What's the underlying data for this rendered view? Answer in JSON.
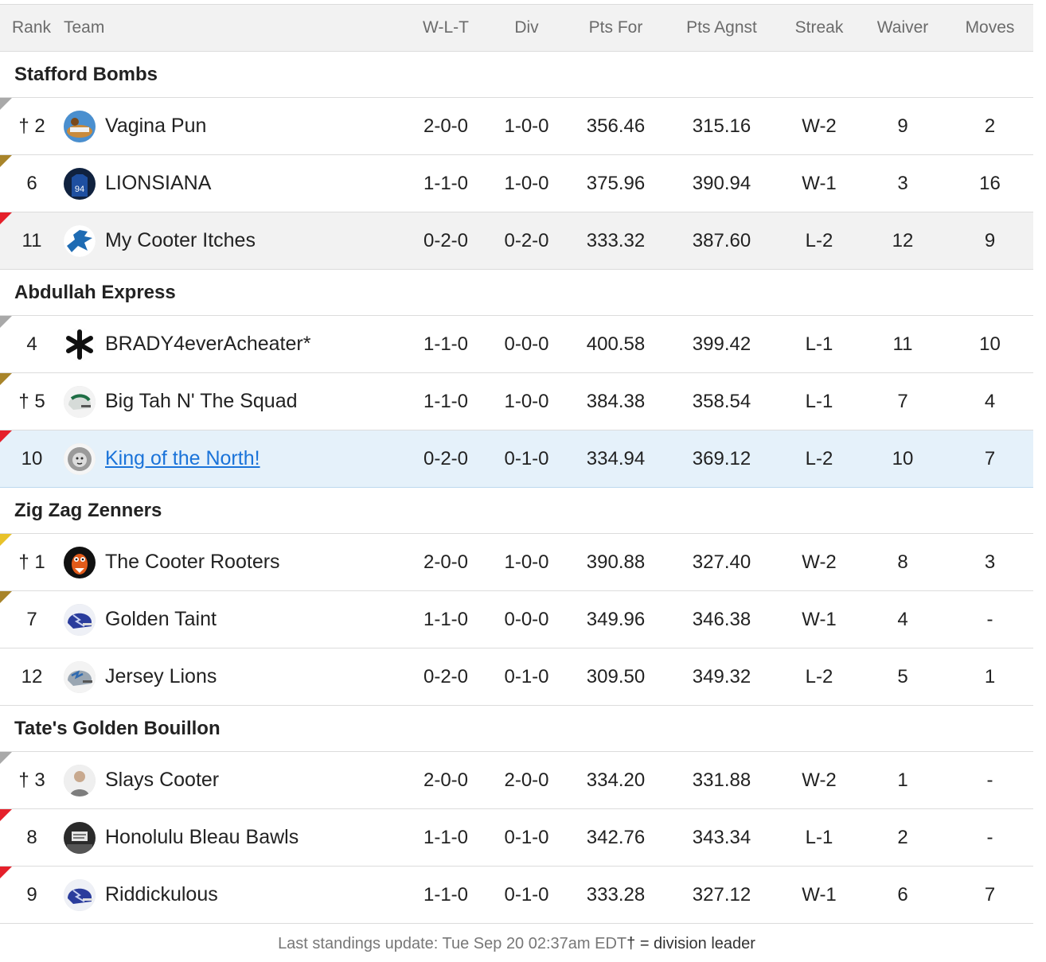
{
  "columns": {
    "rank": "Rank",
    "team": "Team",
    "wlt": "W-L-T",
    "div": "Div",
    "pts_for": "Pts For",
    "pts_agnst": "Pts Agnst",
    "streak": "Streak",
    "waiver": "Waiver",
    "moves": "Moves"
  },
  "divisions": [
    {
      "name": "Stafford Bombs",
      "teams": [
        {
          "rank": "† 2",
          "name": "Vagina Pun",
          "wlt": "2-0-0",
          "div": "1-0-0",
          "pts_for": "356.46",
          "pts_agnst": "315.16",
          "streak": "W-2",
          "waiver": "9",
          "moves": "2",
          "corner_color": "#a9a9a9",
          "logo": "cartoon-logo-icon"
        },
        {
          "rank": "6",
          "name": "LIONSIANA",
          "wlt": "1-1-0",
          "div": "1-0-0",
          "pts_for": "375.96",
          "pts_agnst": "390.94",
          "streak": "W-1",
          "waiver": "3",
          "moves": "16",
          "corner_color": "#a8842a",
          "logo": "jersey-94-icon"
        },
        {
          "rank": "11",
          "name": "My Cooter Itches",
          "wlt": "0-2-0",
          "div": "0-2-0",
          "pts_for": "333.32",
          "pts_agnst": "387.60",
          "streak": "L-2",
          "waiver": "12",
          "moves": "9",
          "corner_color": "#e5202a",
          "logo": "lion-icon"
        }
      ]
    },
    {
      "name": "Abdullah Express",
      "teams": [
        {
          "rank": "4",
          "name": "BRADY4everAcheater*",
          "wlt": "1-1-0",
          "div": "0-0-0",
          "pts_for": "400.58",
          "pts_agnst": "399.42",
          "streak": "L-1",
          "waiver": "11",
          "moves": "10",
          "corner_color": "#a9a9a9",
          "logo": "asterisk-icon"
        },
        {
          "rank": "† 5",
          "name": "Big Tah N' The Squad",
          "wlt": "1-1-0",
          "div": "1-0-0",
          "pts_for": "384.38",
          "pts_agnst": "358.54",
          "streak": "L-1",
          "waiver": "7",
          "moves": "4",
          "corner_color": "#a8842a",
          "logo": "green-helmet-icon"
        },
        {
          "rank": "10",
          "name": "King of the North!",
          "wlt": "0-2-0",
          "div": "0-1-0",
          "pts_for": "334.94",
          "pts_agnst": "369.12",
          "streak": "L-2",
          "waiver": "10",
          "moves": "7",
          "corner_color": "#e5202a",
          "logo": "lion-face-icon"
        }
      ]
    },
    {
      "name": "Zig Zag Zenners",
      "teams": [
        {
          "rank": "† 1",
          "name": "The Cooter Rooters",
          "wlt": "2-0-0",
          "div": "1-0-0",
          "pts_for": "390.88",
          "pts_agnst": "327.40",
          "streak": "W-2",
          "waiver": "8",
          "moves": "3",
          "corner_color": "#e8c22a",
          "logo": "mascot-icon"
        },
        {
          "rank": "7",
          "name": "Golden Taint",
          "wlt": "1-1-0",
          "div": "0-0-0",
          "pts_for": "349.96",
          "pts_agnst": "346.38",
          "streak": "W-1",
          "waiver": "4",
          "moves": "-",
          "corner_color": "#a8842a",
          "logo": "blue-helmet-icon"
        },
        {
          "rank": "12",
          "name": "Jersey Lions",
          "wlt": "0-2-0",
          "div": "0-1-0",
          "pts_for": "309.50",
          "pts_agnst": "349.32",
          "streak": "L-2",
          "waiver": "5",
          "moves": "1",
          "corner_color": "",
          "logo": "silver-helmet-icon"
        }
      ]
    },
    {
      "name": "Tate's Golden Bouillon",
      "teams": [
        {
          "rank": "† 3",
          "name": "Slays Cooter",
          "wlt": "2-0-0",
          "div": "2-0-0",
          "pts_for": "334.20",
          "pts_agnst": "331.88",
          "streak": "W-2",
          "waiver": "1",
          "moves": "-",
          "corner_color": "#a9a9a9",
          "logo": "person-photo-icon"
        },
        {
          "rank": "8",
          "name": "Honolulu Bleau Bawls",
          "wlt": "1-1-0",
          "div": "0-1-0",
          "pts_for": "342.76",
          "pts_agnst": "343.34",
          "streak": "L-1",
          "waiver": "2",
          "moves": "-",
          "corner_color": "#e5202a",
          "logo": "sign-photo-icon"
        },
        {
          "rank": "9",
          "name": "Riddickulous",
          "wlt": "1-1-0",
          "div": "0-1-0",
          "pts_for": "333.28",
          "pts_agnst": "327.12",
          "streak": "W-1",
          "waiver": "6",
          "moves": "7",
          "corner_color": "#e5202a",
          "logo": "blue-helmet-icon"
        }
      ]
    }
  ],
  "footer": {
    "update": "Last standings update: Tue Sep 20 02:37am EDT",
    "legend": "† = division leader"
  }
}
